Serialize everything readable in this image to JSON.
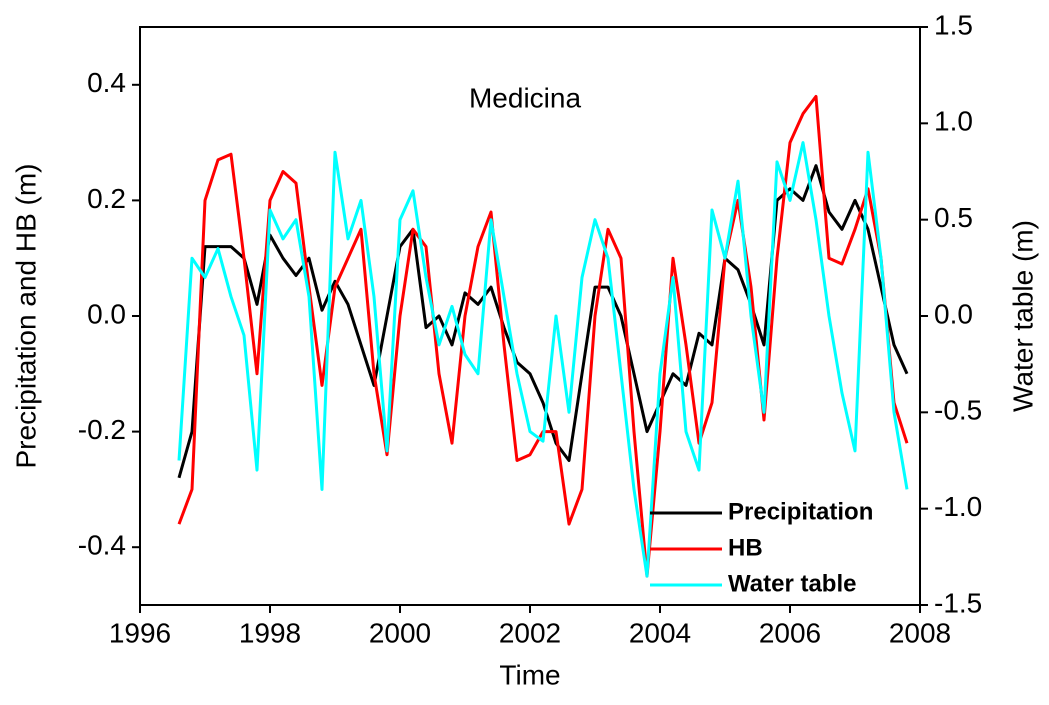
{
  "chart_data": {
    "type": "line",
    "annotation": "Medicina",
    "x_label": "Time",
    "y_label": "Precipitation and HB (m)",
    "y2_label": "Water table (m)",
    "xlim": [
      1996,
      2008
    ],
    "xticks": [
      1996,
      1998,
      2000,
      2002,
      2004,
      2006,
      2008
    ],
    "ylim": [
      -0.5,
      0.5
    ],
    "yticks": [
      -0.4,
      -0.2,
      {
        "value": 0,
        "label": "0.0"
      },
      0.2,
      0.4
    ],
    "y2lim": [
      -1.5,
      1.5
    ],
    "y2ticks": [
      -1.5,
      {
        "value": -1,
        "label": "-1.0"
      },
      -0.5,
      {
        "value": 0,
        "label": "0.0"
      },
      0.5,
      {
        "value": 1,
        "label": "1.0"
      },
      1.5
    ],
    "legend": "bottom-right",
    "x": [
      1996.6,
      1996.8,
      1997.0,
      1997.2,
      1997.4,
      1997.6,
      1997.8,
      1998.0,
      1998.2,
      1998.4,
      1998.6,
      1998.8,
      1999.0,
      1999.2,
      1999.4,
      1999.6,
      1999.8,
      2000.0,
      2000.2,
      2000.4,
      2000.6,
      2000.8,
      2001.0,
      2001.2,
      2001.4,
      2001.6,
      2001.8,
      2002.0,
      2002.2,
      2002.4,
      2002.6,
      2002.8,
      2003.0,
      2003.2,
      2003.4,
      2003.6,
      2003.8,
      2004.0,
      2004.2,
      2004.4,
      2004.6,
      2004.8,
      2005.0,
      2005.2,
      2005.4,
      2005.6,
      2005.8,
      2006.0,
      2006.2,
      2006.4,
      2006.6,
      2006.8,
      2007.0,
      2007.2,
      2007.4,
      2007.6,
      2007.8
    ],
    "series": [
      {
        "name": "Precipitation",
        "color": "#000000",
        "values": [
          -0.28,
          -0.2,
          0.12,
          0.12,
          0.12,
          0.1,
          0.02,
          0.14,
          0.1,
          0.07,
          0.1,
          0.01,
          0.06,
          0.02,
          -0.05,
          -0.12,
          0.0,
          0.12,
          0.15,
          -0.02,
          0.0,
          -0.05,
          0.04,
          0.02,
          0.05,
          -0.02,
          -0.08,
          -0.1,
          -0.15,
          -0.22,
          -0.25,
          -0.1,
          0.05,
          0.05,
          0.0,
          -0.1,
          -0.2,
          -0.15,
          -0.1,
          -0.12,
          -0.03,
          -0.05,
          0.1,
          0.08,
          0.02,
          -0.05,
          0.2,
          0.22,
          0.2,
          0.26,
          0.18,
          0.15,
          0.2,
          0.15,
          0.05,
          -0.05,
          -0.1
        ]
      },
      {
        "name": "HB",
        "color": "#ff0000",
        "values": [
          -0.36,
          -0.3,
          0.2,
          0.27,
          0.28,
          0.1,
          -0.1,
          0.2,
          0.25,
          0.23,
          0.05,
          -0.12,
          0.05,
          0.1,
          0.15,
          -0.1,
          -0.24,
          0.0,
          0.15,
          0.12,
          -0.1,
          -0.22,
          0.0,
          0.12,
          0.18,
          -0.05,
          -0.25,
          -0.24,
          -0.2,
          -0.2,
          -0.36,
          -0.3,
          0.0,
          0.15,
          0.1,
          -0.2,
          -0.45,
          -0.2,
          0.1,
          -0.05,
          -0.22,
          -0.15,
          0.1,
          0.2,
          0.05,
          -0.18,
          0.1,
          0.3,
          0.35,
          0.38,
          0.1,
          0.09,
          0.15,
          0.22,
          0.1,
          -0.15,
          -0.22
        ]
      },
      {
        "name": "Water table",
        "color": "#00ffff",
        "axis": "y2",
        "values": [
          -0.75,
          0.3,
          0.2,
          0.35,
          0.1,
          -0.1,
          -0.8,
          0.55,
          0.4,
          0.5,
          0.1,
          -0.9,
          0.85,
          0.4,
          0.6,
          0.1,
          -0.7,
          0.5,
          0.65,
          0.2,
          -0.15,
          0.05,
          -0.2,
          -0.3,
          0.5,
          0.1,
          -0.3,
          -0.6,
          -0.65,
          0.0,
          -0.5,
          0.2,
          0.5,
          0.3,
          -0.3,
          -0.9,
          -1.35,
          -0.3,
          0.2,
          -0.6,
          -0.8,
          0.55,
          0.3,
          0.7,
          0.0,
          -0.5,
          0.8,
          0.6,
          0.9,
          0.5,
          0.0,
          -0.4,
          -0.7,
          0.85,
          0.3,
          -0.5,
          -0.9
        ]
      }
    ]
  }
}
